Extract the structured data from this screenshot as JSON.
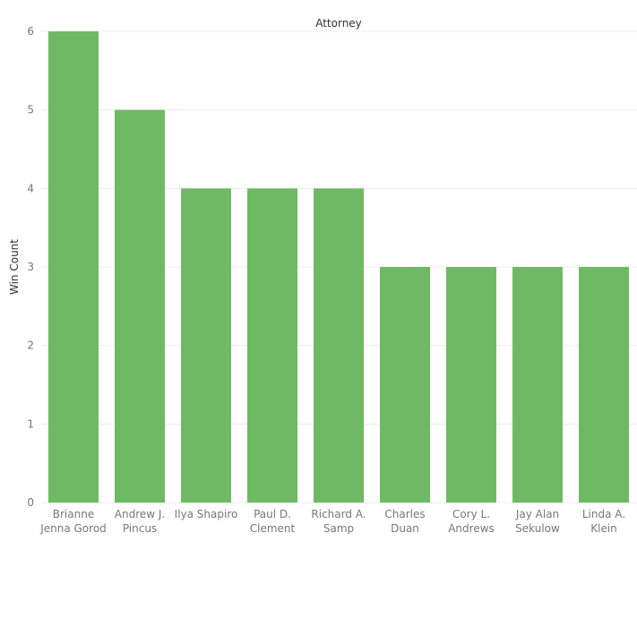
{
  "chart_data": {
    "type": "bar",
    "title": "Attorney",
    "xlabel": "",
    "ylabel": "Win Count",
    "ylim": [
      0,
      6
    ],
    "yticks": [
      0,
      1,
      2,
      3,
      4,
      5,
      6
    ],
    "grid": true,
    "legend": "none",
    "bar_color": "#70b964",
    "categories": [
      [
        "Brianne",
        "Jenna Gorod"
      ],
      [
        "Andrew J.",
        "Pincus"
      ],
      [
        "Ilya Shapiro"
      ],
      [
        "Paul D.",
        "Clement"
      ],
      [
        "Richard A.",
        "Samp"
      ],
      [
        "Charles",
        "Duan"
      ],
      [
        "Cory L.",
        "Andrews"
      ],
      [
        "Jay Alan",
        "Sekulow"
      ],
      [
        "Linda A.",
        "Klein"
      ]
    ],
    "values": [
      6,
      5,
      4,
      4,
      4,
      3,
      3,
      3,
      3
    ]
  }
}
